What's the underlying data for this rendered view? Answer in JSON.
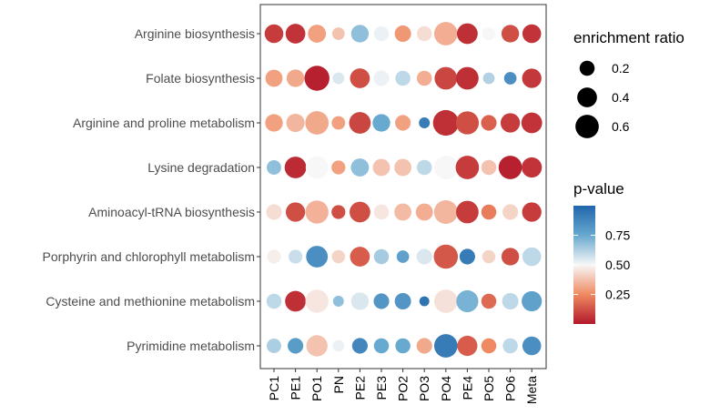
{
  "chart_data": {
    "type": "dot-plot",
    "title": "",
    "xlabel": "",
    "ylabel": "",
    "x_categories": [
      "PC1",
      "PE1",
      "PO1",
      "PN",
      "PE2",
      "PE3",
      "PO2",
      "PO3",
      "PO4",
      "PE4",
      "PO5",
      "PO6",
      "Meta"
    ],
    "y_categories": [
      "Arginine biosynthesis",
      "Folate biosynthesis",
      "Arginine and proline metabolism",
      "Lysine degradation",
      "Aminoacyl-tRNA biosynthesis",
      "Porphyrin and chlorophyll metabolism",
      "Cysteine and methionine metabolism",
      "Pyrimidine metabolism"
    ],
    "points": [
      {
        "pathway": "Arginine biosynthesis",
        "values": [
          {
            "x": "PC1",
            "ratio": 0.35,
            "p": 0.08
          },
          {
            "x": "PE1",
            "ratio": 0.4,
            "p": 0.06
          },
          {
            "x": "PO1",
            "ratio": 0.32,
            "p": 0.3
          },
          {
            "x": "PN",
            "ratio": 0.12,
            "p": 0.38
          },
          {
            "x": "PE2",
            "ratio": 0.3,
            "p": 0.68
          },
          {
            "x": "PE3",
            "ratio": 0.2,
            "p": 0.52
          },
          {
            "x": "PO2",
            "ratio": 0.25,
            "p": 0.28
          },
          {
            "x": "PO3",
            "ratio": 0.2,
            "p": 0.44
          },
          {
            "x": "PO4",
            "ratio": 0.6,
            "p": 0.33
          },
          {
            "x": "PE4",
            "ratio": 0.45,
            "p": 0.05
          },
          {
            "x": "PO5",
            "ratio": 0.14,
            "p": 0.5
          },
          {
            "x": "PO6",
            "ratio": 0.3,
            "p": 0.12
          },
          {
            "x": "Meta",
            "ratio": 0.35,
            "p": 0.06
          }
        ]
      },
      {
        "pathway": "Folate biosynthesis",
        "values": [
          {
            "x": "PC1",
            "ratio": 0.28,
            "p": 0.3
          },
          {
            "x": "PE1",
            "ratio": 0.3,
            "p": 0.32
          },
          {
            "x": "PO1",
            "ratio": 0.7,
            "p": 0.02
          },
          {
            "x": "PN",
            "ratio": 0.1,
            "p": 0.55
          },
          {
            "x": "PE2",
            "ratio": 0.4,
            "p": 0.12
          },
          {
            "x": "PE3",
            "ratio": 0.22,
            "p": 0.52
          },
          {
            "x": "PO2",
            "ratio": 0.2,
            "p": 0.6
          },
          {
            "x": "PO3",
            "ratio": 0.2,
            "p": 0.33
          },
          {
            "x": "PO4",
            "ratio": 0.55,
            "p": 0.1
          },
          {
            "x": "PE4",
            "ratio": 0.55,
            "p": 0.05
          },
          {
            "x": "PO5",
            "ratio": 0.1,
            "p": 0.62
          },
          {
            "x": "PO6",
            "ratio": 0.12,
            "p": 0.85
          },
          {
            "x": "Meta",
            "ratio": 0.38,
            "p": 0.07
          }
        ]
      },
      {
        "pathway": "Arginine and proline metabolism",
        "values": [
          {
            "x": "PC1",
            "ratio": 0.3,
            "p": 0.3
          },
          {
            "x": "PE1",
            "ratio": 0.33,
            "p": 0.35
          },
          {
            "x": "PO1",
            "ratio": 0.6,
            "p": 0.32
          },
          {
            "x": "PN",
            "ratio": 0.15,
            "p": 0.3
          },
          {
            "x": "PE2",
            "ratio": 0.5,
            "p": 0.1
          },
          {
            "x": "PE3",
            "ratio": 0.3,
            "p": 0.75
          },
          {
            "x": "PO2",
            "ratio": 0.22,
            "p": 0.3
          },
          {
            "x": "PO3",
            "ratio": 0.08,
            "p": 0.92
          },
          {
            "x": "PO4",
            "ratio": 0.75,
            "p": 0.05
          },
          {
            "x": "PE4",
            "ratio": 0.58,
            "p": 0.12
          },
          {
            "x": "PO5",
            "ratio": 0.22,
            "p": 0.16
          },
          {
            "x": "PO6",
            "ratio": 0.38,
            "p": 0.08
          },
          {
            "x": "Meta",
            "ratio": 0.45,
            "p": 0.06
          }
        ]
      },
      {
        "pathway": "Lysine degradation",
        "values": [
          {
            "x": "PC1",
            "ratio": 0.18,
            "p": 0.68
          },
          {
            "x": "PE1",
            "ratio": 0.5,
            "p": 0.04
          },
          {
            "x": "PO1",
            "ratio": 0.55,
            "p": 0.5
          },
          {
            "x": "PN",
            "ratio": 0.16,
            "p": 0.3
          },
          {
            "x": "PE2",
            "ratio": 0.32,
            "p": 0.68
          },
          {
            "x": "PE3",
            "ratio": 0.28,
            "p": 0.38
          },
          {
            "x": "PO2",
            "ratio": 0.28,
            "p": 0.38
          },
          {
            "x": "PO3",
            "ratio": 0.2,
            "p": 0.6
          },
          {
            "x": "PO4",
            "ratio": 0.62,
            "p": 0.5
          },
          {
            "x": "PE4",
            "ratio": 0.6,
            "p": 0.08
          },
          {
            "x": "PO5",
            "ratio": 0.2,
            "p": 0.38
          },
          {
            "x": "PO6",
            "ratio": 0.6,
            "p": 0.02
          },
          {
            "x": "Meta",
            "ratio": 0.42,
            "p": 0.06
          }
        ]
      },
      {
        "pathway": "Aminoacyl-tRNA biosynthesis",
        "values": [
          {
            "x": "PC1",
            "ratio": 0.22,
            "p": 0.44
          },
          {
            "x": "PE1",
            "ratio": 0.38,
            "p": 0.12
          },
          {
            "x": "PO1",
            "ratio": 0.58,
            "p": 0.34
          },
          {
            "x": "PN",
            "ratio": 0.16,
            "p": 0.12
          },
          {
            "x": "PE2",
            "ratio": 0.45,
            "p": 0.12
          },
          {
            "x": "PE3",
            "ratio": 0.2,
            "p": 0.46
          },
          {
            "x": "PO2",
            "ratio": 0.28,
            "p": 0.36
          },
          {
            "x": "PO3",
            "ratio": 0.28,
            "p": 0.33
          },
          {
            "x": "PO4",
            "ratio": 0.62,
            "p": 0.35
          },
          {
            "x": "PE4",
            "ratio": 0.55,
            "p": 0.08
          },
          {
            "x": "PO5",
            "ratio": 0.2,
            "p": 0.22
          },
          {
            "x": "PO6",
            "ratio": 0.22,
            "p": 0.42
          },
          {
            "x": "Meta",
            "ratio": 0.38,
            "p": 0.08
          }
        ]
      },
      {
        "pathway": "Porphyrin and chlorophyll metabolism",
        "values": [
          {
            "x": "PC1",
            "ratio": 0.16,
            "p": 0.48
          },
          {
            "x": "PE1",
            "ratio": 0.16,
            "p": 0.58
          },
          {
            "x": "PO1",
            "ratio": 0.5,
            "p": 0.85
          },
          {
            "x": "PN",
            "ratio": 0.14,
            "p": 0.42
          },
          {
            "x": "PE2",
            "ratio": 0.4,
            "p": 0.15
          },
          {
            "x": "PE3",
            "ratio": 0.2,
            "p": 0.64
          },
          {
            "x": "PO2",
            "ratio": 0.12,
            "p": 0.78
          },
          {
            "x": "PO3",
            "ratio": 0.22,
            "p": 0.55
          },
          {
            "x": "PO4",
            "ratio": 0.65,
            "p": 0.14
          },
          {
            "x": "PE4",
            "ratio": 0.22,
            "p": 0.92
          },
          {
            "x": "PO5",
            "ratio": 0.14,
            "p": 0.42
          },
          {
            "x": "PO6",
            "ratio": 0.3,
            "p": 0.12
          },
          {
            "x": "Meta",
            "ratio": 0.35,
            "p": 0.6
          }
        ]
      },
      {
        "pathway": "Cysteine and methionine metabolism",
        "values": [
          {
            "x": "PC1",
            "ratio": 0.2,
            "p": 0.6
          },
          {
            "x": "PE1",
            "ratio": 0.45,
            "p": 0.05
          },
          {
            "x": "PO1",
            "ratio": 0.58,
            "p": 0.46
          },
          {
            "x": "PN",
            "ratio": 0.08,
            "p": 0.68
          },
          {
            "x": "PE2",
            "ratio": 0.3,
            "p": 0.55
          },
          {
            "x": "PE3",
            "ratio": 0.22,
            "p": 0.82
          },
          {
            "x": "PO2",
            "ratio": 0.25,
            "p": 0.82
          },
          {
            "x": "PO3",
            "ratio": 0.06,
            "p": 0.95
          },
          {
            "x": "PO4",
            "ratio": 0.6,
            "p": 0.45
          },
          {
            "x": "PE4",
            "ratio": 0.52,
            "p": 0.72
          },
          {
            "x": "PO5",
            "ratio": 0.2,
            "p": 0.18
          },
          {
            "x": "PO6",
            "ratio": 0.25,
            "p": 0.6
          },
          {
            "x": "Meta",
            "ratio": 0.42,
            "p": 0.78
          }
        ]
      },
      {
        "pathway": "Pyrimidine metabolism",
        "values": [
          {
            "x": "PC1",
            "ratio": 0.18,
            "p": 0.63
          },
          {
            "x": "PE1",
            "ratio": 0.22,
            "p": 0.8
          },
          {
            "x": "PO1",
            "ratio": 0.48,
            "p": 0.38
          },
          {
            "x": "PN",
            "ratio": 0.1,
            "p": 0.52
          },
          {
            "x": "PE2",
            "ratio": 0.22,
            "p": 0.88
          },
          {
            "x": "PE3",
            "ratio": 0.2,
            "p": 0.75
          },
          {
            "x": "PO2",
            "ratio": 0.2,
            "p": 0.75
          },
          {
            "x": "PO3",
            "ratio": 0.22,
            "p": 0.32
          },
          {
            "x": "PO4",
            "ratio": 0.6,
            "p": 0.92
          },
          {
            "x": "PE4",
            "ratio": 0.42,
            "p": 0.15
          },
          {
            "x": "PO5",
            "ratio": 0.2,
            "p": 0.25
          },
          {
            "x": "PO6",
            "ratio": 0.2,
            "p": 0.6
          },
          {
            "x": "Meta",
            "ratio": 0.35,
            "p": 0.85
          }
        ]
      }
    ],
    "size_legend": {
      "title": "enrichment ratio",
      "entries": [
        {
          "label": "0.2",
          "value": 0.2
        },
        {
          "label": "0.4",
          "value": 0.4
        },
        {
          "label": "0.6",
          "value": 0.6
        }
      ]
    },
    "color_legend": {
      "title": "p-value",
      "ticks": [
        {
          "label": "0.75",
          "value": 0.75
        },
        {
          "label": "0.50",
          "value": 0.5
        },
        {
          "label": "0.25",
          "value": 0.25
        }
      ],
      "range": [
        0.0,
        1.0
      ],
      "colors": {
        "low": "#b2182b",
        "mid": "#f7f7f7",
        "high": "#2166ac",
        "low_mid": "#ef8a62",
        "high_mid": "#67a9cf"
      }
    }
  }
}
